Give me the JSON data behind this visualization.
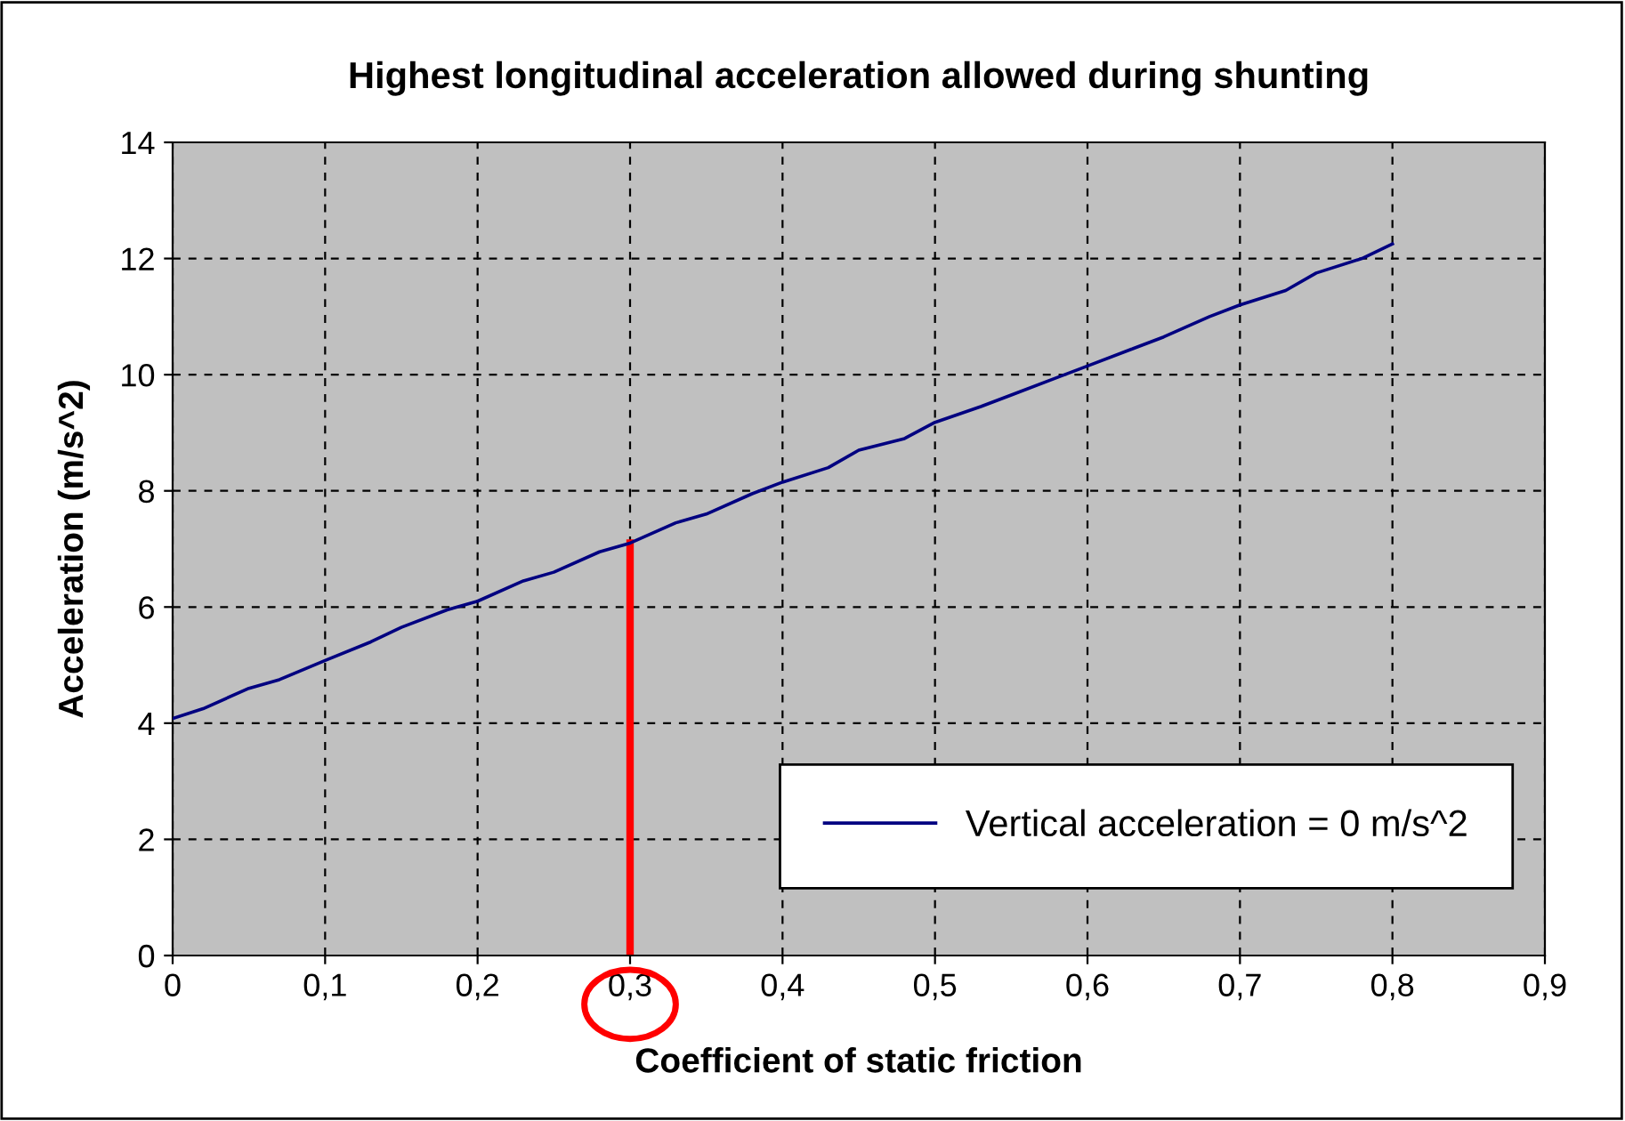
{
  "chart_data": {
    "type": "line",
    "title": "Highest longitudinal acceleration allowed during shunting",
    "xlabel": "Coefficient of static friction",
    "ylabel": "Acceleration (m/s^2)",
    "x": [
      0,
      0.02,
      0.05,
      0.07,
      0.1,
      0.13,
      0.15,
      0.18,
      0.2,
      0.23,
      0.25,
      0.28,
      0.3,
      0.33,
      0.35,
      0.38,
      0.4,
      0.43,
      0.45,
      0.48,
      0.5,
      0.53,
      0.55,
      0.58,
      0.6,
      0.63,
      0.65,
      0.68,
      0.7,
      0.73,
      0.75,
      0.78,
      0.8
    ],
    "series": [
      {
        "name": "Vertical acceleration = 0 m/s^2",
        "color": "#000080",
        "values": [
          4.08,
          4.25,
          4.6,
          4.75,
          5.08,
          5.4,
          5.65,
          5.95,
          6.1,
          6.45,
          6.6,
          6.95,
          7.1,
          7.45,
          7.6,
          7.95,
          8.15,
          8.4,
          8.7,
          8.9,
          9.18,
          9.45,
          9.65,
          9.95,
          10.15,
          10.45,
          10.65,
          11.0,
          11.2,
          11.45,
          11.75,
          12.0,
          12.25
        ]
      }
    ],
    "xlim": [
      0,
      0.9
    ],
    "xticks": [
      0,
      {
        "value": 0.1,
        "label": "0,1"
      },
      {
        "value": 0.2,
        "label": "0,2"
      },
      {
        "value": 0.3,
        "label": "0,3"
      },
      {
        "value": 0.4,
        "label": "0,4"
      },
      {
        "value": 0.5,
        "label": "0,5"
      },
      {
        "value": 0.6,
        "label": "0,6"
      },
      {
        "value": 0.7,
        "label": "0,7"
      },
      {
        "value": 0.8,
        "label": "0,8"
      },
      {
        "value": 0.9,
        "label": "0,9"
      }
    ],
    "ylim": [
      0,
      14
    ],
    "yticks": [
      0,
      2,
      4,
      6,
      8,
      10,
      12,
      14
    ],
    "ref_lines": [
      {
        "axis": "x",
        "value": 0.3,
        "color": "#ff0000"
      }
    ],
    "grid": true,
    "legend": "bottom right",
    "line_style": "solid",
    "marker": "none"
  }
}
